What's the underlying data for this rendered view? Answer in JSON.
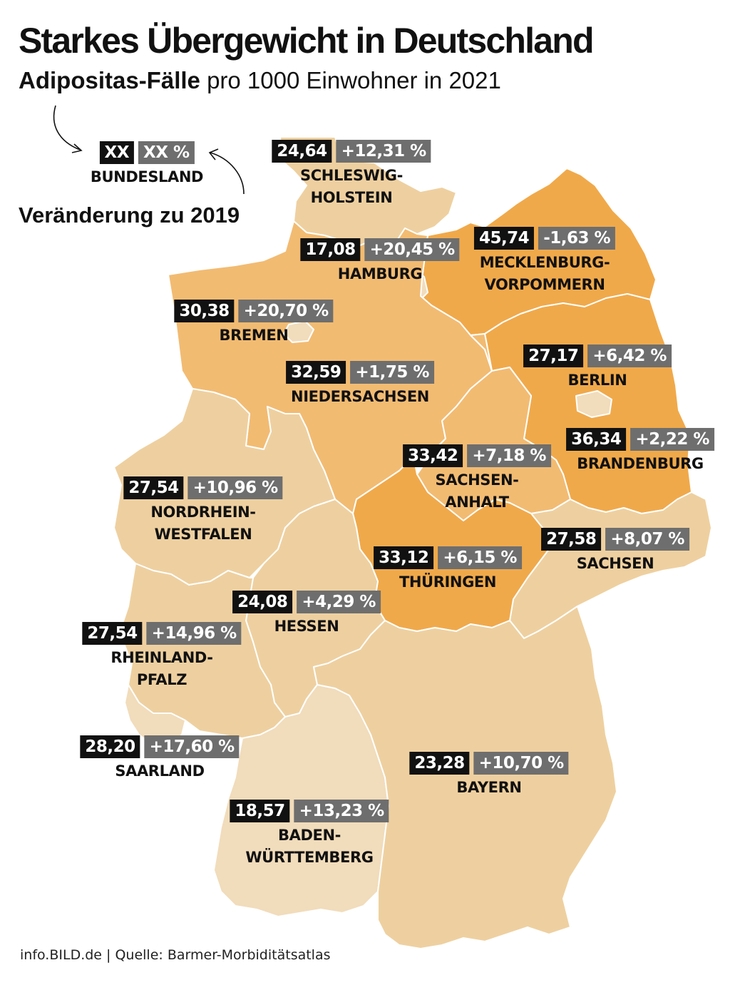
{
  "title": "Starkes Übergewicht in Deutschland",
  "subtitle": {
    "bold": "Adipositas-Fälle",
    "rest": "pro 1000 Einwohner in 2021"
  },
  "legend": {
    "value": "XX",
    "change": "XX %",
    "name": "BUNDESLAND",
    "note": "Veränderung zu 2019"
  },
  "footer": "info.BILD.de | Quelle: Barmer-Morbiditätsatlas",
  "colors": {
    "dark": "#f0a94a",
    "medium": "#f2bb72",
    "light": "#eed0a0",
    "lightest": "#f1dcbb",
    "border": "#ffffff",
    "value_box": "#111111",
    "change_box": "#6e6e6e"
  },
  "states": [
    {
      "id": "sh",
      "name_lines": [
        "SCHLESWIG-",
        "HOLSTEIN"
      ],
      "value": "24,64",
      "change": "+12,31 %"
    },
    {
      "id": "hh",
      "name_lines": [
        "HAMBURG"
      ],
      "value": "17,08",
      "change": "+20,45 %"
    },
    {
      "id": "mv",
      "name_lines": [
        "MECKLENBURG-",
        "VORPOMMERN"
      ],
      "value": "45,74",
      "change": "-1,63 %"
    },
    {
      "id": "hb",
      "name_lines": [
        "BREMEN"
      ],
      "value": "30,38",
      "change": "+20,70 %"
    },
    {
      "id": "be",
      "name_lines": [
        "BERLIN"
      ],
      "value": "27,17",
      "change": "+6,42 %"
    },
    {
      "id": "ni",
      "name_lines": [
        "NIEDERSACHSEN"
      ],
      "value": "32,59",
      "change": "+1,75 %"
    },
    {
      "id": "bb",
      "name_lines": [
        "BRANDENBURG"
      ],
      "value": "36,34",
      "change": "+2,22 %"
    },
    {
      "id": "st",
      "name_lines": [
        "SACHSEN-",
        "ANHALT"
      ],
      "value": "33,42",
      "change": "+7,18 %"
    },
    {
      "id": "nw",
      "name_lines": [
        "NORDRHEIN-",
        "WESTFALEN"
      ],
      "value": "27,54",
      "change": "+10,96 %"
    },
    {
      "id": "sn",
      "name_lines": [
        "SACHSEN"
      ],
      "value": "27,58",
      "change": "+8,07 %"
    },
    {
      "id": "th",
      "name_lines": [
        "THÜRINGEN"
      ],
      "value": "33,12",
      "change": "+6,15 %"
    },
    {
      "id": "he",
      "name_lines": [
        "HESSEN"
      ],
      "value": "24,08",
      "change": "+4,29 %"
    },
    {
      "id": "rp",
      "name_lines": [
        "RHEINLAND-",
        "PFALZ"
      ],
      "value": "27,54",
      "change": "+14,96 %"
    },
    {
      "id": "sl",
      "name_lines": [
        "SAARLAND"
      ],
      "value": "28,20",
      "change": "+17,60 %"
    },
    {
      "id": "by",
      "name_lines": [
        "BAYERN"
      ],
      "value": "23,28",
      "change": "+10,70 %"
    },
    {
      "id": "bw",
      "name_lines": [
        "BADEN-",
        "WÜRTTEMBERG"
      ],
      "value": "18,57",
      "change": "+13,23 %"
    }
  ]
}
